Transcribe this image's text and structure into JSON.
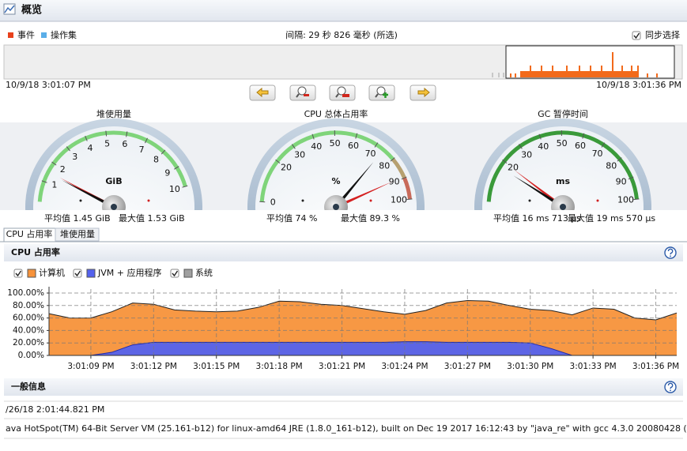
{
  "header": {
    "title": "概览"
  },
  "timeline": {
    "legend": [
      "事件",
      "操作集"
    ],
    "interval": "间隔: 29 秒 826 毫秒 (所选)",
    "sync": "同步选择",
    "start": "10/9/18 3:01:07 PM",
    "end": "10/9/18 3:01:36 PM"
  },
  "gauges": [
    {
      "title": "堆使用量",
      "unit": "GiB",
      "lim": [
        0,
        10
      ],
      "ticks": [
        1,
        2,
        3,
        4,
        5,
        6,
        7,
        8,
        9,
        10
      ],
      "avg": 1.45,
      "max": 1.53,
      "avg_label": "平均值 1.45 GiB",
      "max_label": "最大值 1.53 GiB"
    },
    {
      "title": "CPU 总体占用率",
      "unit": "%",
      "lim": [
        0,
        100
      ],
      "ticks": [
        0,
        20,
        30,
        40,
        50,
        60,
        70,
        80,
        90,
        100
      ],
      "avg": 74,
      "max": 89.3,
      "avg_label": "平均值 74 %",
      "max_label": "最大值 89.3 %"
    },
    {
      "title": "GC 暂停时间",
      "unit": "ms",
      "lim": [
        0,
        100
      ],
      "ticks": [
        20,
        30,
        40,
        50,
        60,
        70,
        80,
        90,
        100
      ],
      "avg": 16.713,
      "max": 19.57,
      "avg_label": "平均值 16 ms 713 µs",
      "max_label": "最大值 19 ms 570 µs"
    }
  ],
  "tabs": [
    "CPU 占用率",
    "堆使用量"
  ],
  "chart_data": {
    "type": "area",
    "title": "CPU 占用率",
    "x": [
      "3:01:07 PM",
      "3:01:08 PM",
      "3:01:09 PM",
      "3:01:10 PM",
      "3:01:11 PM",
      "3:01:12 PM",
      "3:01:13 PM",
      "3:01:14 PM",
      "3:01:15 PM",
      "3:01:16 PM",
      "3:01:17 PM",
      "3:01:18 PM",
      "3:01:19 PM",
      "3:01:20 PM",
      "3:01:21 PM",
      "3:01:22 PM",
      "3:01:23 PM",
      "3:01:24 PM",
      "3:01:25 PM",
      "3:01:26 PM",
      "3:01:27 PM",
      "3:01:28 PM",
      "3:01:29 PM",
      "3:01:30 PM",
      "3:01:31 PM",
      "3:01:32 PM",
      "3:01:33 PM",
      "3:01:34 PM",
      "3:01:35 PM",
      "3:01:36 PM",
      "3:01:37 PM"
    ],
    "series": [
      {
        "name": "计算机",
        "color": "#f7923a",
        "values": [
          67,
          60,
          60,
          70,
          84,
          82,
          73,
          71,
          70,
          71,
          77,
          87,
          86,
          82,
          80,
          75,
          70,
          66,
          72,
          84,
          88,
          87,
          80,
          74,
          72,
          65,
          76,
          74,
          60,
          57,
          68
        ]
      },
      {
        "name": "JVM + 应用程序",
        "color": "#5462ee",
        "values": [
          0,
          0,
          0,
          5,
          17,
          21,
          21,
          21,
          21,
          21,
          21,
          21,
          21,
          21,
          21,
          21,
          21,
          22,
          22,
          21,
          21,
          21,
          21,
          20,
          11,
          0,
          0,
          0,
          0,
          0,
          0
        ]
      },
      {
        "name": "系统",
        "color": "#a0a0a0",
        "values": [
          0,
          0,
          0,
          0,
          0,
          0,
          0,
          0,
          0,
          0,
          0,
          0,
          0,
          0,
          0,
          0,
          0,
          0,
          0,
          0,
          0,
          0,
          0,
          0,
          0,
          0,
          0,
          0,
          0,
          0,
          0
        ]
      }
    ],
    "xlim": [
      "3:01:07 PM",
      "3:01:37 PM"
    ],
    "xticks": [
      "3:01:09 PM",
      "3:01:12 PM",
      "3:01:15 PM",
      "3:01:18 PM",
      "3:01:21 PM",
      "3:01:24 PM",
      "3:01:27 PM",
      "3:01:30 PM",
      "3:01:33 PM",
      "3:01:36 PM"
    ],
    "ylim": [
      0,
      100
    ],
    "yticks": [
      {
        "value": 0,
        "label": "0.00%"
      },
      {
        "value": 20,
        "label": "20.00%"
      },
      {
        "value": 40,
        "label": "40.00%"
      },
      {
        "value": 60,
        "label": "60.00%"
      },
      {
        "value": 80,
        "label": "80.00%"
      },
      {
        "value": 100,
        "label": "100.00%"
      }
    ],
    "grid": true
  },
  "info": {
    "title": "一般信息",
    "rows": [
      "/26/18 2:01:44.821 PM",
      "ava HotSpot(TM) 64-Bit Server VM (25.161-b12) for linux-amd64 JRE (1.8.0_161-b12), built on Dec 19 2017 16:12:43 by \"java_re\" with gcc 4.3.0 20080428 ("
    ]
  }
}
